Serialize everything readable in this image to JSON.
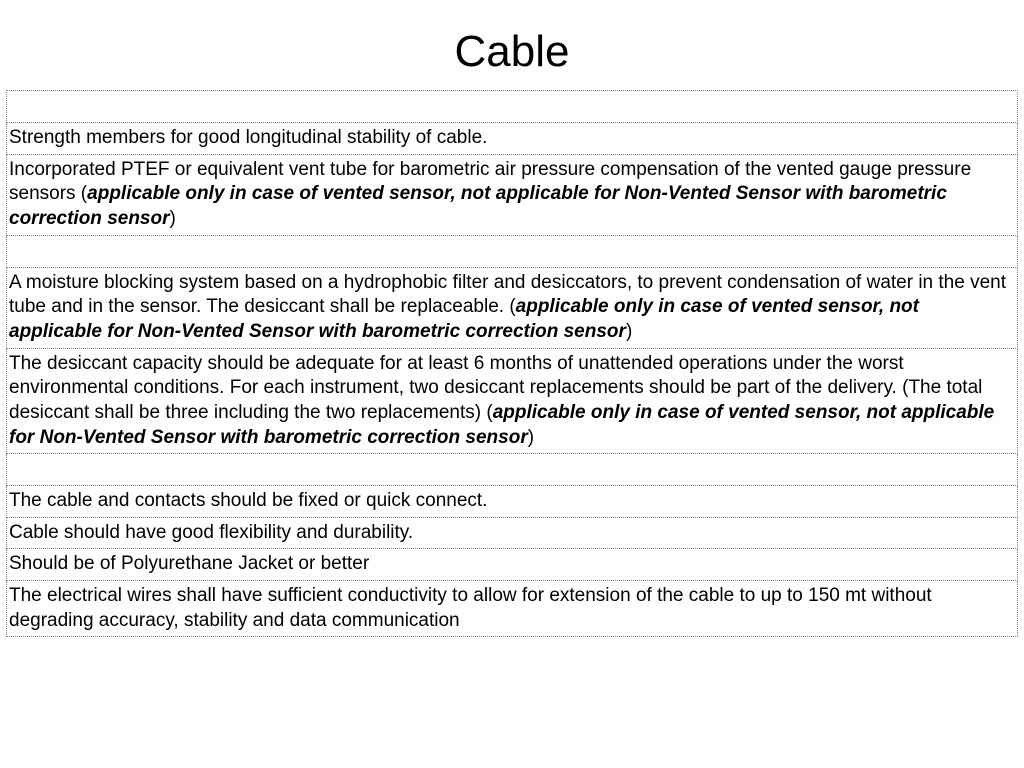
{
  "title": "Cable",
  "colors": {
    "background": "#ffffff",
    "text": "#000000",
    "border": "#888888"
  },
  "typography": {
    "title_fontsize": 44,
    "body_fontsize": 19,
    "font_family": "Arial"
  },
  "layout": {
    "slide_width": 1024,
    "slide_height": 768,
    "border_style": "dotted"
  },
  "rows": [
    {
      "type": "empty"
    },
    {
      "type": "text",
      "parts": [
        {
          "text": "Strength members for good longitudinal stability of cable.",
          "bold_italic": false
        }
      ]
    },
    {
      "type": "text",
      "parts": [
        {
          "text": "Incorporated PTEF or equivalent vent tube for barometric air pressure compensation of the vented gauge pressure sensors (",
          "bold_italic": false
        },
        {
          "text": "applicable only in case of vented sensor, not applicable for Non-Vented Sensor with barometric correction sensor",
          "bold_italic": true
        },
        {
          "text": ")",
          "bold_italic": false
        }
      ]
    },
    {
      "type": "empty"
    },
    {
      "type": "text",
      "parts": [
        {
          "text": "A moisture blocking system based on a hydrophobic filter and desiccators, to prevent condensation of water in the vent tube and in the sensor. The desiccant shall be replaceable. (",
          "bold_italic": false
        },
        {
          "text": "applicable only in case of vented sensor, not applicable for Non-Vented Sensor with barometric correction sensor",
          "bold_italic": true
        },
        {
          "text": ")",
          "bold_italic": false
        }
      ]
    },
    {
      "type": "text",
      "parts": [
        {
          "text": "The desiccant capacity should be adequate for at least 6 months of unattended operations under the worst environmental conditions. For each instrument, two desiccant replacements should be part of the delivery. (The total desiccant shall be three including the two replacements) (",
          "bold_italic": false
        },
        {
          "text": "applicable only in case of vented sensor, not applicable for Non-Vented Sensor with barometric correction sensor",
          "bold_italic": true
        },
        {
          "text": ")",
          "bold_italic": false
        }
      ]
    },
    {
      "type": "empty"
    },
    {
      "type": "text",
      "parts": [
        {
          "text": "The cable and contacts should be fixed or quick connect.",
          "bold_italic": false
        }
      ]
    },
    {
      "type": "text",
      "parts": [
        {
          "text": "Cable should have good flexibility and durability.",
          "bold_italic": false
        }
      ]
    },
    {
      "type": "text",
      "parts": [
        {
          "text": "Should be of Polyurethane Jacket or better",
          "bold_italic": false
        }
      ]
    },
    {
      "type": "text",
      "parts": [
        {
          "text": "The electrical wires shall have sufficient conductivity to allow for extension of the cable to up to 150 mt without degrading accuracy, stability and data communication",
          "bold_italic": false
        }
      ]
    }
  ]
}
